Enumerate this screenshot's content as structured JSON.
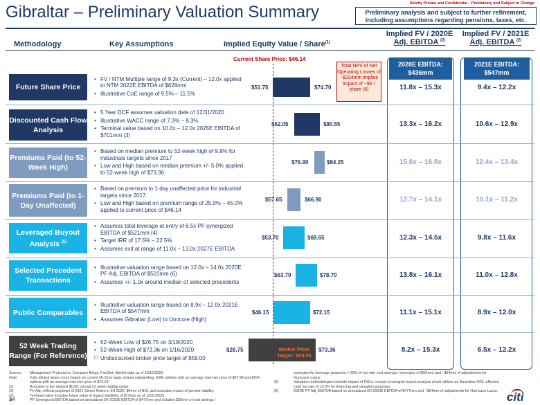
{
  "confidential": "Strictly Private and Confidential – Preliminary and Subject to Change",
  "title": "Gibraltar – Preliminary Valuation Summary",
  "subtitle": "Preliminary analysis and subject to further refinement, including assumptions regarding pensions, taxes, etc.",
  "headers": {
    "methodology": "Methodology",
    "assumptions": "Key Assumptions",
    "implied": "Implied Equity Value / Share",
    "implied_sup": "(1)",
    "fv2020_line1": "Implied FV / 2020E",
    "fv2020_line2": "Adj. EBITDA",
    "fv2020_sup": "(2)",
    "fv2021_line1": "Implied FV / 2021E",
    "fv2021_line2": "Adj. EBITDA",
    "fv2021_sup": "(2)"
  },
  "current_price": "Current Share Price: $46.14",
  "ebitda_2020": "2020E EBITDA: $436mm",
  "ebitda_2021": "2021E EBITDA: $547mm",
  "npv_note": "Total NPV of Net Operating Losses of ~$334mm implies impact of ~$5 / share (6)",
  "broker_note": "Broker Price Target: $59.00",
  "rows": [
    {
      "method": "Future Share Price",
      "bullets": [
        "FV / NTM Multiple range of 9.3x (Current) – 12.0x applied to NTM 2022E EBITDA of $628mm",
        "Illustrative CoE range of 9.5% – 11.5%"
      ],
      "low": "$51.75",
      "high": "$74.70",
      "m2020": "11.8x – 15.3x",
      "m2021": "9.4x – 12.2x"
    },
    {
      "method": "Discounted Cash Flow Analysis",
      "bullets": [
        "5 Year DCF assumes valuation date of 12/31/2020",
        "Illustrative WACC range of 7.3% – 8.3%",
        "Terminal value based on 10.0x – 12.0x 2025E EBITDA of $701mm (3)"
      ],
      "low": "$62.05",
      "high": "$80.55",
      "m2020": "13.3x – 16.2x",
      "m2021": "10.6x – 12.9x"
    },
    {
      "method": "Premiums Paid (to 52-Week High)",
      "bullets": [
        "Based on median premium to 52-week high of 9.8% for industrials targets since 2017",
        "Low and High based on median premium +/- 5.0% applied to 52-week high of $73.36"
      ],
      "low": "$76.90",
      "high": "$84.25",
      "m2020": "15.6x – 16.8x",
      "m2021": "12.4x – 13.4x"
    },
    {
      "method": "Premiums Paid (to 1-Day Unaffected)",
      "bullets": [
        "Based on premium to 1-day unaffected price for industrial targets since 2017",
        "Low and High based on premium range of 25.0% – 45.0% applied to current price of $46.14"
      ],
      "low": "$57.65",
      "high": "$66.90",
      "m2020": "12.7x – 14.1x",
      "m2021": "10.1x – 11.2x"
    },
    {
      "method": "Leveraged Buyout Analysis",
      "method_sup": "(5)",
      "bullets": [
        "Assumes total leverage at entry of 6.5x PF synergized EBITDA of $521mm (4)",
        "Target IRR of 17.5% – 22.5%",
        "Assumes exit at range of 11.0x – 13.0x 2027E EBITDA"
      ],
      "low": "$53.70",
      "high": "$68.65",
      "m2020": "12.3x – 14.5x",
      "m2021": "9.8x – 11.6x"
    },
    {
      "method": "Selected Precedent Transactions",
      "bullets": [
        "Illustrative valuation range based on 12.0x – 14.0x 2020E PF Adj. EBITDA of $501mm (6)",
        "Assumes +/- 1.0x around median of selected precedents"
      ],
      "low": "$63.70",
      "high": "$78.70",
      "m2020": "13.8x – 16.1x",
      "m2021": "11.0x – 12.8x"
    },
    {
      "method": "Public Comparables",
      "bullets": [
        "Illustrative valuation range based on 8.9x – 12.0x 2021E EBITDA of $547mm",
        "Assumes Gibraltar (Low) to Umicore (High)"
      ],
      "low": "$46.15",
      "high": "$72.15",
      "m2020": "11.1x – 15.1x",
      "m2021": "8.9x – 12.0x"
    },
    {
      "method": "52 Week Trading Range (For Reference)",
      "bullets": [
        "52-Week Low of $26.75 on 3/19/2020",
        "52-Week High of $73.36 on 1/16/2020",
        "Undiscounted broker price target of $59.00"
      ],
      "low": "$26.75",
      "high": "$73.36",
      "m2020": "8.2x – 15.3x",
      "m2021": "6.5x – 12.2x"
    }
  ],
  "footnotes_left": [
    {
      "tag": "Source:",
      "text": "Management Projections, Company filings, FactSet. Market data as of 10/16/2020."
    },
    {
      "tag": "Note:",
      "text": "Fully diluted share count based on current 66.2mm basic shares outstanding, 668k options with an average exercise price of $67.98 and 897k options with an average exercise price of $75.59"
    },
    {
      "tag": "(1)",
      "text": "Rounded to the nearest $0.05; except 52 week trading range."
    },
    {
      "tag": "(2)",
      "text": "FV Adj. reflects paydown of 2021 Senior Notes in 2H 2020, $4mm of NCI, and excludes impact of pension liability."
    },
    {
      "tag": "(3)",
      "text": "Terminal value includes future value of legacy liabilities of $73mm as of 12/31/2025."
    },
    {
      "tag": "(4)",
      "text": "PF Synergized EBITDA based on annualized 2H 2020E EBITDA of $477mm and includes $20mm of cost savings /"
    }
  ],
  "footnotes_right": [
    {
      "tag": "",
      "text": "synergies for leverage purposes (~33% of run-rate cost savings / synergies of $60mm) and ~$24mm of adjustments for Hurricane Laura."
    },
    {
      "tag": "(5)",
      "text": "Valuation methodologies exclude impact of NOLs, except Leveraged buyout analysis which utilizes an illustrative NOL-affected cash tax rate of 13.0% for financing and valuation purposes."
    },
    {
      "tag": "(6)",
      "text": "2020E PF Adj. EBITDA based on annualized 2H 2020E EBITDA of $477mm and ~$24mm of adjustments for Hurricane Laura."
    }
  ],
  "page_number": "14",
  "logo_text": "citi"
}
